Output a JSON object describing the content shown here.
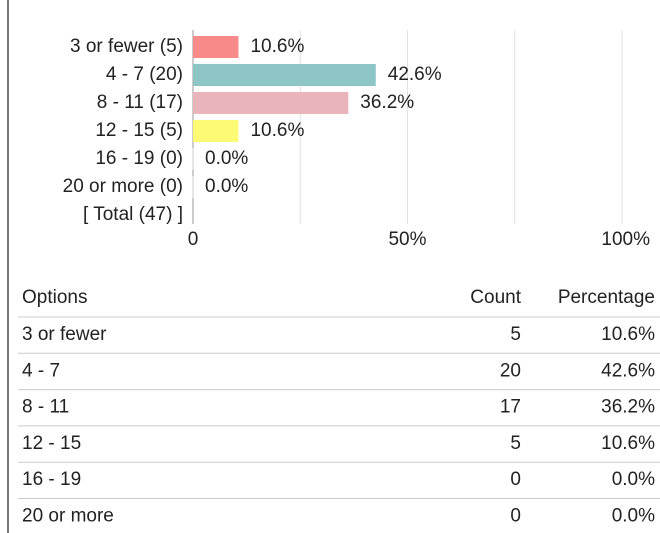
{
  "chart_data": {
    "type": "hbar",
    "categories": [
      "3 or fewer (5)",
      "4 - 7 (20)",
      "8 - 11 (17)",
      "12 - 15 (5)",
      "16 - 19 (0)",
      "20 or more (0)",
      "[ Total (47) ]"
    ],
    "values": [
      10.6,
      42.6,
      36.2,
      10.6,
      0,
      0,
      null
    ],
    "value_labels": [
      "10.6%",
      "42.6%",
      "36.2%",
      "10.6%",
      "0.0%",
      "0.0%",
      null
    ],
    "colors": [
      "#f98a8a",
      "#8ec6c6",
      "#e9b5bb",
      "#fcf974",
      "#cccccc",
      "#cccccc",
      null
    ],
    "xlim": [
      0,
      100
    ],
    "xticks": [
      0,
      {
        "value": 50,
        "label": "50%"
      },
      {
        "value": 100,
        "label": "100%"
      }
    ],
    "minor_xticks": [
      25,
      75
    ],
    "grid": true
  },
  "table": {
    "columns": [
      "Options",
      "Count",
      "Percentage"
    ],
    "rows": [
      [
        "3 or fewer",
        "5",
        "10.6%"
      ],
      [
        "4 - 7",
        "20",
        "42.6%"
      ],
      [
        "8 - 11",
        "17",
        "36.2%"
      ],
      [
        "12 - 15",
        "5",
        "10.6%"
      ],
      [
        "16 - 19",
        "0",
        "0.0%"
      ],
      [
        "20 or more",
        "0",
        "0.0%"
      ]
    ]
  }
}
